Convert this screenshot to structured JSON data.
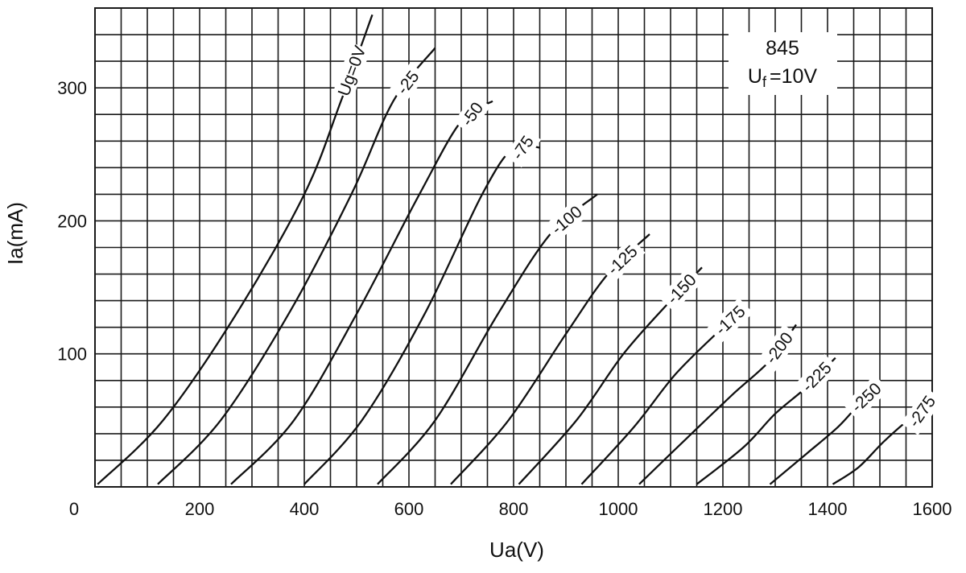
{
  "chart_data": {
    "type": "line",
    "title": "",
    "annotation": {
      "tube": "845",
      "filament_symbol": "U",
      "filament_subscript": "f",
      "filament_value": "=10V"
    },
    "xlabel": "Ua(V)",
    "ylabel": "Ia(mA)",
    "xlim": [
      0,
      1600
    ],
    "ylim": [
      0,
      360
    ],
    "x_ticks": [
      "0",
      "200",
      "400",
      "600",
      "800",
      "1000",
      "1200",
      "1400",
      "1600"
    ],
    "y_ticks": [
      "100",
      "200",
      "300"
    ],
    "grid": true,
    "grid_x_step": 50,
    "grid_y_step": 20,
    "series": [
      {
        "name": "Ug=0V",
        "points": [
          [
            5,
            2
          ],
          [
            130,
            50
          ],
          [
            270,
            130
          ],
          [
            400,
            220
          ],
          [
            470,
            290
          ],
          [
            530,
            355
          ]
        ]
      },
      {
        "name": "-25",
        "points": [
          [
            120,
            2
          ],
          [
            240,
            50
          ],
          [
            370,
            130
          ],
          [
            490,
            220
          ],
          [
            570,
            290
          ],
          [
            650,
            330
          ]
        ]
      },
      {
        "name": "-50",
        "points": [
          [
            260,
            2
          ],
          [
            380,
            50
          ],
          [
            500,
            130
          ],
          [
            620,
            220
          ],
          [
            700,
            275
          ],
          [
            760,
            290
          ]
        ]
      },
      {
        "name": "-75",
        "points": [
          [
            400,
            2
          ],
          [
            510,
            50
          ],
          [
            630,
            130
          ],
          [
            740,
            220
          ],
          [
            800,
            255
          ],
          [
            850,
            255
          ]
        ]
      },
      {
        "name": "-100",
        "points": [
          [
            540,
            2
          ],
          [
            650,
            50
          ],
          [
            770,
            130
          ],
          [
            870,
            190
          ],
          [
            960,
            220
          ]
        ]
      },
      {
        "name": "-125",
        "points": [
          [
            680,
            2
          ],
          [
            790,
            50
          ],
          [
            900,
            115
          ],
          [
            980,
            160
          ],
          [
            1060,
            190
          ]
        ]
      },
      {
        "name": "-150",
        "points": [
          [
            810,
            2
          ],
          [
            920,
            50
          ],
          [
            1010,
            100
          ],
          [
            1100,
            140
          ],
          [
            1160,
            165
          ]
        ]
      },
      {
        "name": "-175",
        "points": [
          [
            930,
            2
          ],
          [
            1030,
            45
          ],
          [
            1110,
            85
          ],
          [
            1200,
            120
          ],
          [
            1240,
            135
          ]
        ]
      },
      {
        "name": "-200",
        "points": [
          [
            1040,
            2
          ],
          [
            1140,
            40
          ],
          [
            1220,
            70
          ],
          [
            1290,
            95
          ],
          [
            1340,
            122
          ]
        ]
      },
      {
        "name": "-225",
        "points": [
          [
            1150,
            2
          ],
          [
            1240,
            30
          ],
          [
            1300,
            55
          ],
          [
            1360,
            75
          ],
          [
            1415,
            97
          ]
        ]
      },
      {
        "name": "-250",
        "points": [
          [
            1290,
            2
          ],
          [
            1360,
            25
          ],
          [
            1420,
            45
          ],
          [
            1460,
            62
          ],
          [
            1500,
            77
          ]
        ]
      },
      {
        "name": "-275",
        "points": [
          [
            1410,
            2
          ],
          [
            1460,
            15
          ],
          [
            1510,
            35
          ],
          [
            1570,
            55
          ],
          [
            1600,
            60
          ]
        ]
      }
    ]
  }
}
